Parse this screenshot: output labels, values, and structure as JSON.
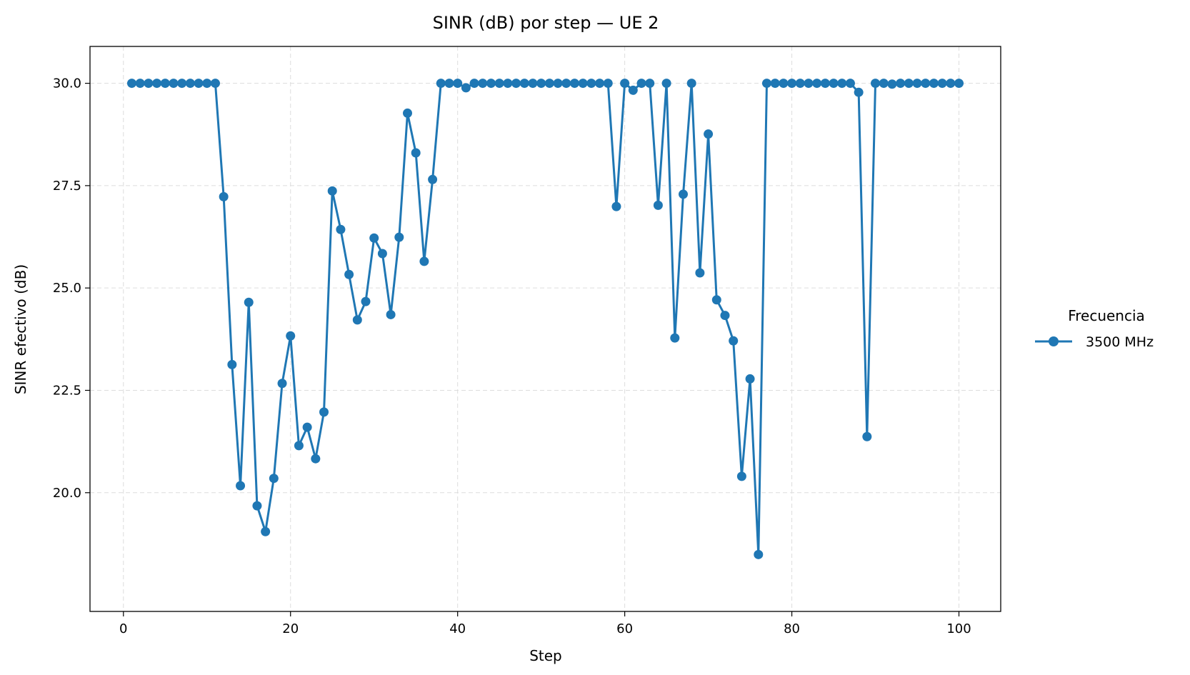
{
  "chart_data": {
    "type": "line",
    "title": "SINR (dB) por step — UE 2",
    "xlabel": "Step",
    "ylabel": "SINR efectivo (dB)",
    "xlim": [
      -4,
      105
    ],
    "ylim": [
      17.1,
      30.9
    ],
    "xticks": [
      0,
      20,
      40,
      60,
      80,
      100
    ],
    "xtick_labels": [
      "0",
      "20",
      "40",
      "60",
      "80",
      "100"
    ],
    "yticks": [
      20.0,
      22.5,
      25.0,
      27.5,
      30.0
    ],
    "ytick_labels": [
      "20.0",
      "22.5",
      "25.0",
      "27.5",
      "30.0"
    ],
    "grid": true,
    "legend": {
      "title": "Frecuencia",
      "placement": "right"
    },
    "series": [
      {
        "name": "3500 MHz",
        "color": "#1f77b4",
        "marker": "circle",
        "x": [
          1,
          2,
          3,
          4,
          5,
          6,
          7,
          8,
          9,
          10,
          11,
          12,
          13,
          14,
          15,
          16,
          17,
          18,
          19,
          20,
          21,
          22,
          23,
          24,
          25,
          26,
          27,
          28,
          29,
          30,
          31,
          32,
          33,
          34,
          35,
          36,
          37,
          38,
          39,
          40,
          41,
          42,
          43,
          44,
          45,
          46,
          47,
          48,
          49,
          50,
          51,
          52,
          53,
          54,
          55,
          56,
          57,
          58,
          59,
          60,
          61,
          62,
          63,
          64,
          65,
          66,
          67,
          68,
          69,
          70,
          71,
          72,
          73,
          74,
          75,
          76,
          77,
          78,
          79,
          80,
          81,
          82,
          83,
          84,
          85,
          86,
          87,
          88,
          89,
          90,
          91,
          92,
          93,
          94,
          95,
          96,
          97,
          98,
          99,
          100
        ],
        "values": [
          30.0,
          30.0,
          30.0,
          30.0,
          30.0,
          30.0,
          30.0,
          30.0,
          30.0,
          30.0,
          30.0,
          27.23,
          23.13,
          20.17,
          24.65,
          19.68,
          19.05,
          20.35,
          22.67,
          23.83,
          21.15,
          21.6,
          20.83,
          21.97,
          27.37,
          26.43,
          25.33,
          24.22,
          24.67,
          26.22,
          25.84,
          24.35,
          26.24,
          29.27,
          28.3,
          25.65,
          27.65,
          30.0,
          30.0,
          30.0,
          29.89,
          30.0,
          30.0,
          30.0,
          30.0,
          30.0,
          30.0,
          30.0,
          30.0,
          30.0,
          30.0,
          30.0,
          30.0,
          30.0,
          30.0,
          30.0,
          30.0,
          30.0,
          26.99,
          30.0,
          29.83,
          30.0,
          30.0,
          27.02,
          30.0,
          23.78,
          27.29,
          30.0,
          25.37,
          28.76,
          24.71,
          24.33,
          23.71,
          20.4,
          22.78,
          18.49,
          30.0,
          30.0,
          30.0,
          30.0,
          30.0,
          30.0,
          30.0,
          30.0,
          30.0,
          30.0,
          30.0,
          29.78,
          21.37,
          30.0,
          30.0,
          29.98,
          30.0,
          30.0,
          30.0,
          30.0,
          30.0,
          30.0,
          30.0,
          30.0
        ]
      }
    ]
  }
}
